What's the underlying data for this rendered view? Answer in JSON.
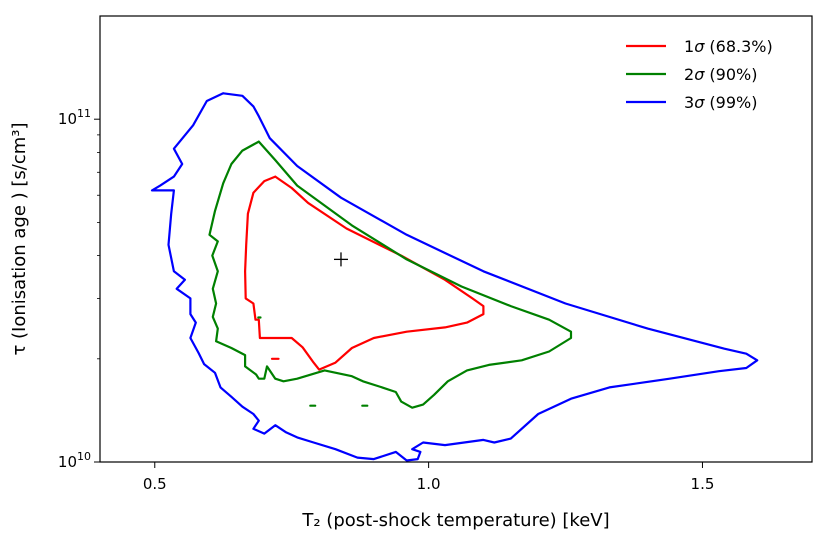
{
  "chart_data": {
    "type": "line",
    "title": "",
    "xlabel": "T₂ (post-shock temperature) [keV]",
    "ylabel": "τ  (Ionisation age ) [s/cm³]",
    "xlim": [
      0.4,
      1.7
    ],
    "ylim": [
      10000000000.0,
      200000000000.0
    ],
    "yscale": "log",
    "grid": false,
    "legend_position": "top-right",
    "x_ticks": [
      {
        "value": 0.5,
        "label": "0.5"
      },
      {
        "value": 1.0,
        "label": "1.0"
      },
      {
        "value": 1.5,
        "label": "1.5"
      }
    ],
    "y_ticks": [
      {
        "value": 10000000000.0,
        "base": "10",
        "exp": "10"
      },
      {
        "value": 100000000000.0,
        "base": "10",
        "exp": "11"
      }
    ],
    "best_fit": {
      "x": 0.84,
      "y": 39000000000.0,
      "marker": "+"
    },
    "series": [
      {
        "name": "1σ (68.3%)",
        "sigma": "1",
        "rest": " (68.3%)",
        "color": "#ff0000",
        "contours": [
          [
            [
              0.72,
              68000000000.0
            ],
            [
              0.7,
              66000000000.0
            ],
            [
              0.68,
              61000000000.0
            ],
            [
              0.67,
              53000000000.0
            ],
            [
              0.667,
              43000000000.0
            ],
            [
              0.665,
              36000000000.0
            ],
            [
              0.666,
              30000000000.0
            ],
            [
              0.68,
              29000000000.0
            ],
            [
              0.684,
              26000000000.0
            ],
            [
              0.69,
              26000000000.0
            ],
            [
              0.692,
              23000000000.0
            ],
            [
              0.72,
              23000000000.0
            ],
            [
              0.75,
              23000000000.0
            ],
            [
              0.77,
              21600000000.0
            ],
            [
              0.79,
              19500000000.0
            ],
            [
              0.8,
              18600000000.0
            ],
            [
              0.83,
              19500000000.0
            ],
            [
              0.86,
              21500000000.0
            ],
            [
              0.9,
              23000000000.0
            ],
            [
              0.96,
              24000000000.0
            ],
            [
              1.03,
              24700000000.0
            ],
            [
              1.07,
              25500000000.0
            ],
            [
              1.1,
              27000000000.0
            ],
            [
              1.1,
              28500000000.0
            ],
            [
              1.08,
              30000000000.0
            ],
            [
              1.03,
              34000000000.0
            ],
            [
              0.95,
              40000000000.0
            ],
            [
              0.85,
              48000000000.0
            ],
            [
              0.78,
              57000000000.0
            ],
            [
              0.75,
              63000000000.0
            ],
            [
              0.72,
              68000000000.0
            ]
          ],
          [
            [
              0.714,
              20000000000.0
            ],
            [
              0.726,
              20000000000.0
            ]
          ]
        ]
      },
      {
        "name": "2σ (90%)",
        "sigma": "2",
        "rest": " (90%)",
        "color": "#008000",
        "contours": [
          [
            [
              0.69,
              86000000000.0
            ],
            [
              0.66,
              81000000000.0
            ],
            [
              0.64,
              74000000000.0
            ],
            [
              0.625,
              65000000000.0
            ],
            [
              0.61,
              54000000000.0
            ],
            [
              0.6,
              46000000000.0
            ],
            [
              0.615,
              44000000000.0
            ],
            [
              0.605,
              40000000000.0
            ],
            [
              0.615,
              36000000000.0
            ],
            [
              0.606,
              32000000000.0
            ],
            [
              0.612,
              29000000000.0
            ],
            [
              0.606,
              26500000000.0
            ],
            [
              0.615,
              24500000000.0
            ],
            [
              0.612,
              22500000000.0
            ],
            [
              0.64,
              21500000000.0
            ],
            [
              0.665,
              20500000000.0
            ],
            [
              0.665,
              19000000000.0
            ],
            [
              0.685,
              18000000000.0
            ],
            [
              0.69,
              17500000000.0
            ],
            [
              0.7,
              17500000000.0
            ],
            [
              0.705,
              19000000000.0
            ],
            [
              0.72,
              17500000000.0
            ],
            [
              0.735,
              17200000000.0
            ],
            [
              0.76,
              17500000000.0
            ],
            [
              0.81,
              18500000000.0
            ],
            [
              0.86,
              17800000000.0
            ],
            [
              0.88,
              17200000000.0
            ],
            [
              0.91,
              16600000000.0
            ],
            [
              0.94,
              16000000000.0
            ],
            [
              0.95,
              15000000000.0
            ],
            [
              0.97,
              14400000000.0
            ],
            [
              0.99,
              14700000000.0
            ],
            [
              1.01,
              15700000000.0
            ],
            [
              1.035,
              17200000000.0
            ],
            [
              1.07,
              18500000000.0
            ],
            [
              1.11,
              19200000000.0
            ],
            [
              1.17,
              19800000000.0
            ],
            [
              1.22,
              21000000000.0
            ],
            [
              1.26,
              23000000000.0
            ],
            [
              1.26,
              24000000000.0
            ],
            [
              1.22,
              26000000000.0
            ],
            [
              1.15,
              28500000000.0
            ],
            [
              1.06,
              32500000000.0
            ],
            [
              0.96,
              39000000000.0
            ],
            [
              0.86,
              49000000000.0
            ],
            [
              0.76,
              64000000000.0
            ],
            [
              0.72,
              76000000000.0
            ],
            [
              0.69,
              86000000000.0
            ]
          ],
          [
            [
              0.689,
              26400000000.0
            ],
            [
              0.693,
              26400000000.0
            ]
          ],
          [
            [
              0.784,
              14600000000.0
            ],
            [
              0.793,
              14600000000.0
            ]
          ],
          [
            [
              0.879,
              14600000000.0
            ],
            [
              0.888,
              14600000000.0
            ]
          ]
        ]
      },
      {
        "name": "3σ (99%)",
        "sigma": "3",
        "rest": " (99%)",
        "color": "#0000ff",
        "contours": [
          [
            [
              0.625,
              119000000000.0
            ],
            [
              0.595,
              113000000000.0
            ],
            [
              0.57,
              96000000000.0
            ],
            [
              0.535,
              82000000000.0
            ],
            [
              0.55,
              74000000000.0
            ],
            [
              0.535,
              68000000000.0
            ],
            [
              0.51,
              64000000000.0
            ],
            [
              0.495,
              62000000000.0
            ],
            [
              0.535,
              62000000000.0
            ],
            [
              0.53,
              53000000000.0
            ],
            [
              0.525,
              43000000000.0
            ],
            [
              0.535,
              36000000000.0
            ],
            [
              0.555,
              34000000000.0
            ],
            [
              0.54,
              32000000000.0
            ],
            [
              0.565,
              30000000000.0
            ],
            [
              0.565,
              27000000000.0
            ],
            [
              0.575,
              25500000000.0
            ],
            [
              0.565,
              23000000000.0
            ],
            [
              0.58,
              20800000000.0
            ],
            [
              0.59,
              19300000000.0
            ],
            [
              0.61,
              18200000000.0
            ],
            [
              0.62,
              16500000000.0
            ],
            [
              0.64,
              15500000000.0
            ],
            [
              0.66,
              14500000000.0
            ],
            [
              0.68,
              13800000000.0
            ],
            [
              0.69,
              13200000000.0
            ],
            [
              0.68,
              12500000000.0
            ],
            [
              0.7,
              12100000000.0
            ],
            [
              0.72,
              12800000000.0
            ],
            [
              0.74,
              12200000000.0
            ],
            [
              0.76,
              11800000000.0
            ],
            [
              0.79,
              11400000000.0
            ],
            [
              0.83,
              10900000000.0
            ],
            [
              0.87,
              10300000000.0
            ],
            [
              0.9,
              10200000000.0
            ],
            [
              0.94,
              10700000000.0
            ],
            [
              0.96,
              10100000000.0
            ],
            [
              0.98,
              10200000000.0
            ],
            [
              0.985,
              10700000000.0
            ],
            [
              0.97,
              10900000000.0
            ],
            [
              0.99,
              11400000000.0
            ],
            [
              1.03,
              11200000000.0
            ],
            [
              1.1,
              11600000000.0
            ],
            [
              1.12,
              11400000000.0
            ],
            [
              1.15,
              11700000000.0
            ],
            [
              1.2,
              13800000000.0
            ],
            [
              1.26,
              15300000000.0
            ],
            [
              1.33,
              16500000000.0
            ],
            [
              1.44,
              17500000000.0
            ],
            [
              1.53,
              18400000000.0
            ],
            [
              1.58,
              18800000000.0
            ],
            [
              1.6,
              19800000000.0
            ],
            [
              1.58,
              20700000000.0
            ],
            [
              1.54,
              21400000000.0
            ],
            [
              1.4,
              24500000000.0
            ],
            [
              1.25,
              29000000000.0
            ],
            [
              1.1,
              36000000000.0
            ],
            [
              0.96,
              46000000000.0
            ],
            [
              0.84,
              59000000000.0
            ],
            [
              0.76,
              73000000000.0
            ],
            [
              0.71,
              88000000000.0
            ],
            [
              0.69,
              102000000000.0
            ],
            [
              0.68,
              109000000000.0
            ],
            [
              0.66,
              117000000000.0
            ],
            [
              0.625,
              119000000000.0
            ]
          ]
        ]
      }
    ]
  }
}
